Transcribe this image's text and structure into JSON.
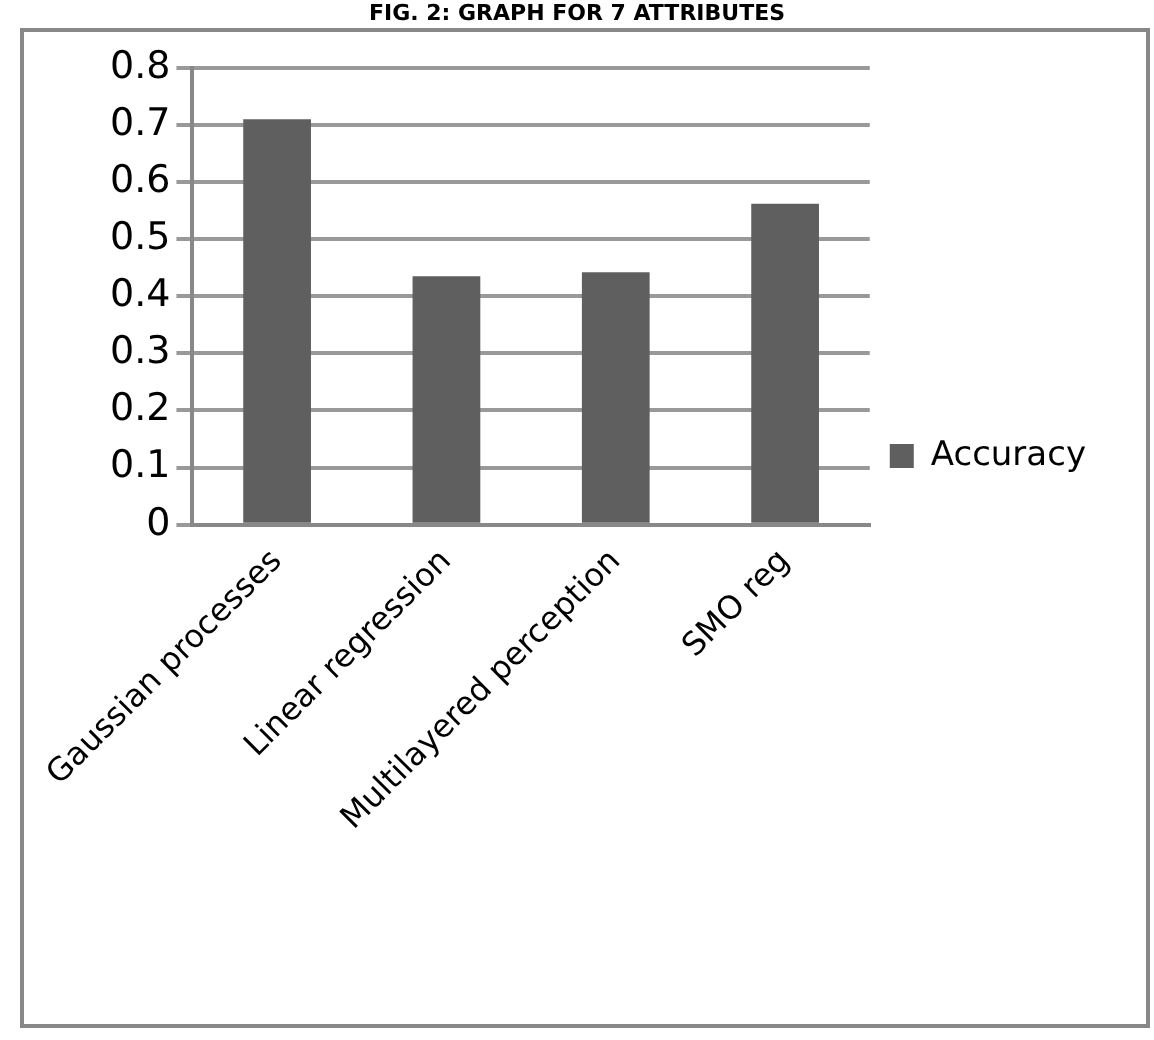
{
  "chart_data": {
    "type": "bar",
    "title": "FIG. 2: GRAPH FOR 7 ATTRIBUTES",
    "categories": [
      "Gaussian processes",
      "Linear regression",
      "Multilayered perception",
      "SMO reg"
    ],
    "series": [
      {
        "name": "Accuracy",
        "color": "#5f5f5f",
        "values": [
          0.71,
          0.435,
          0.442,
          0.562
        ]
      }
    ],
    "ylim": [
      0,
      0.8
    ],
    "yticks": [
      0,
      0.1,
      0.2,
      0.3,
      0.4,
      0.5,
      0.6,
      0.7,
      0.8
    ],
    "grid": "y",
    "legend": "right"
  }
}
